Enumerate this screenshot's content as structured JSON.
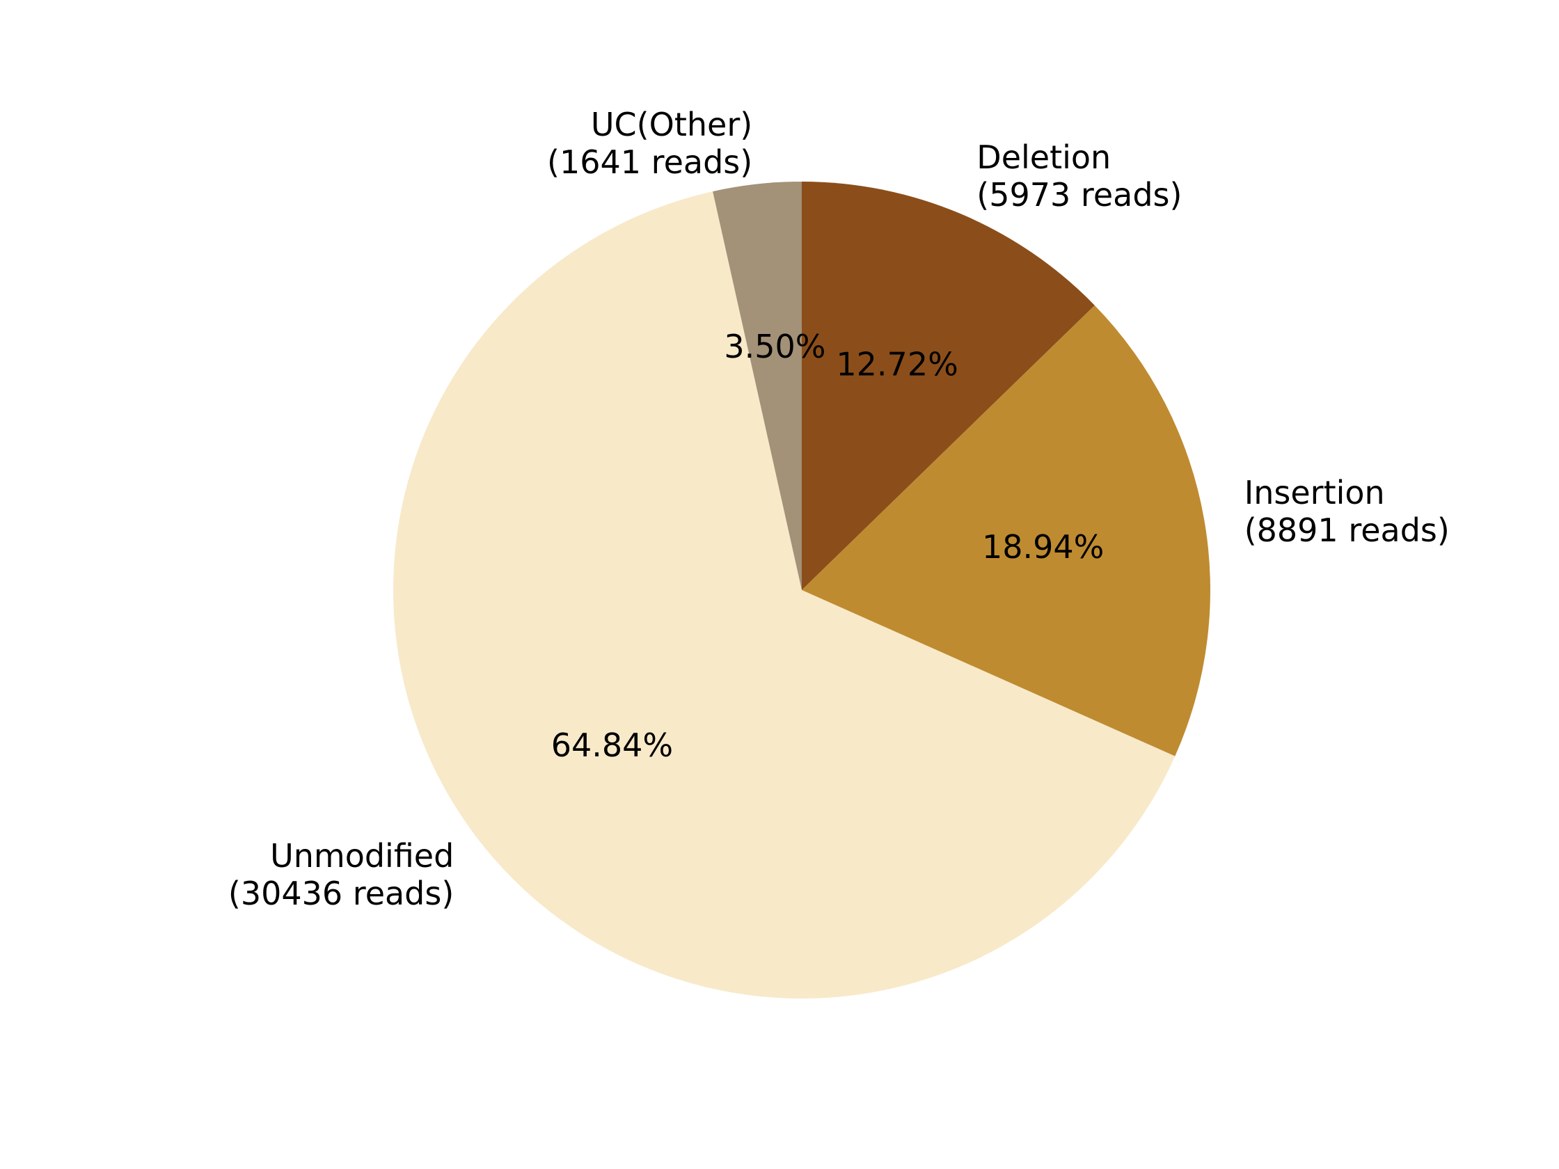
{
  "chart_data": {
    "type": "pie",
    "start_angle_deg": 90,
    "direction": "clockwise",
    "slices": [
      {
        "name": "Deletion",
        "reads_label": "(5973 reads)",
        "value": 5973,
        "percent_label": "12.72%",
        "color": "#8B4E1A"
      },
      {
        "name": "Insertion",
        "reads_label": "(8891 reads)",
        "value": 8891,
        "percent_label": "18.94%",
        "color": "#BF8B31"
      },
      {
        "name": "Unmodified",
        "reads_label": "(30436 reads)",
        "value": 30436,
        "percent_label": "64.84%",
        "color": "#F8E9C9"
      },
      {
        "name": "UC(Other)",
        "reads_label": "(1641 reads)",
        "value": 1641,
        "percent_label": "3.50%",
        "color": "#A39178"
      }
    ]
  }
}
